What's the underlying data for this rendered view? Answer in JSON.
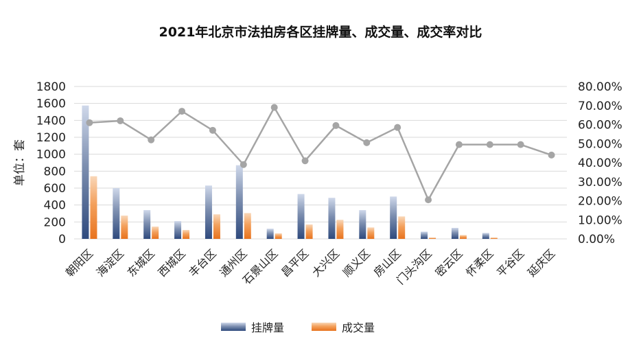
{
  "chart_data": {
    "type": "bar",
    "title": "2021年北京市法拍房各区挂牌量、成交量、成交率对比",
    "ylabel": "单位：套",
    "ylim": [
      0,
      1800
    ],
    "y_ticks": [
      "0",
      "200",
      "400",
      "600",
      "800",
      "1000",
      "1200",
      "1400",
      "1600",
      "1800"
    ],
    "y2lim": [
      0,
      0.8
    ],
    "y2_ticks": [
      "0.00%",
      "10.00%",
      "20.00%",
      "30.00%",
      "40.00%",
      "50.00%",
      "60.00%",
      "70.00%",
      "80.00%"
    ],
    "grid": true,
    "legend_position": "bottom",
    "categories": [
      "朝阳区",
      "海淀区",
      "东城区",
      "西城区",
      "丰台区",
      "通州区",
      "石景山区",
      "昌平区",
      "大兴区",
      "顺义区",
      "房山区",
      "门头沟区",
      "密云区",
      "怀柔区",
      "平谷区",
      "延庆区"
    ],
    "series": [
      {
        "name": "挂牌量",
        "type": "bar",
        "axis": "left",
        "color": "#44546a",
        "values": [
          1575,
          600,
          340,
          210,
          630,
          870,
          120,
          530,
          485,
          340,
          500,
          85,
          130,
          70,
          0,
          0
        ]
      },
      {
        "name": "成交量",
        "type": "bar",
        "axis": "left",
        "color": "#ed7d31",
        "values": [
          740,
          275,
          145,
          105,
          290,
          305,
          65,
          170,
          225,
          135,
          265,
          15,
          45,
          15,
          0,
          0
        ]
      },
      {
        "name": "",
        "type": "line",
        "axis": "right",
        "color": "#a5a5a5",
        "values": [
          0.61,
          0.62,
          0.52,
          0.67,
          0.57,
          0.39,
          0.69,
          0.41,
          0.595,
          0.505,
          0.585,
          0.205,
          0.495,
          0.495,
          0.495,
          0.44
        ]
      }
    ]
  }
}
